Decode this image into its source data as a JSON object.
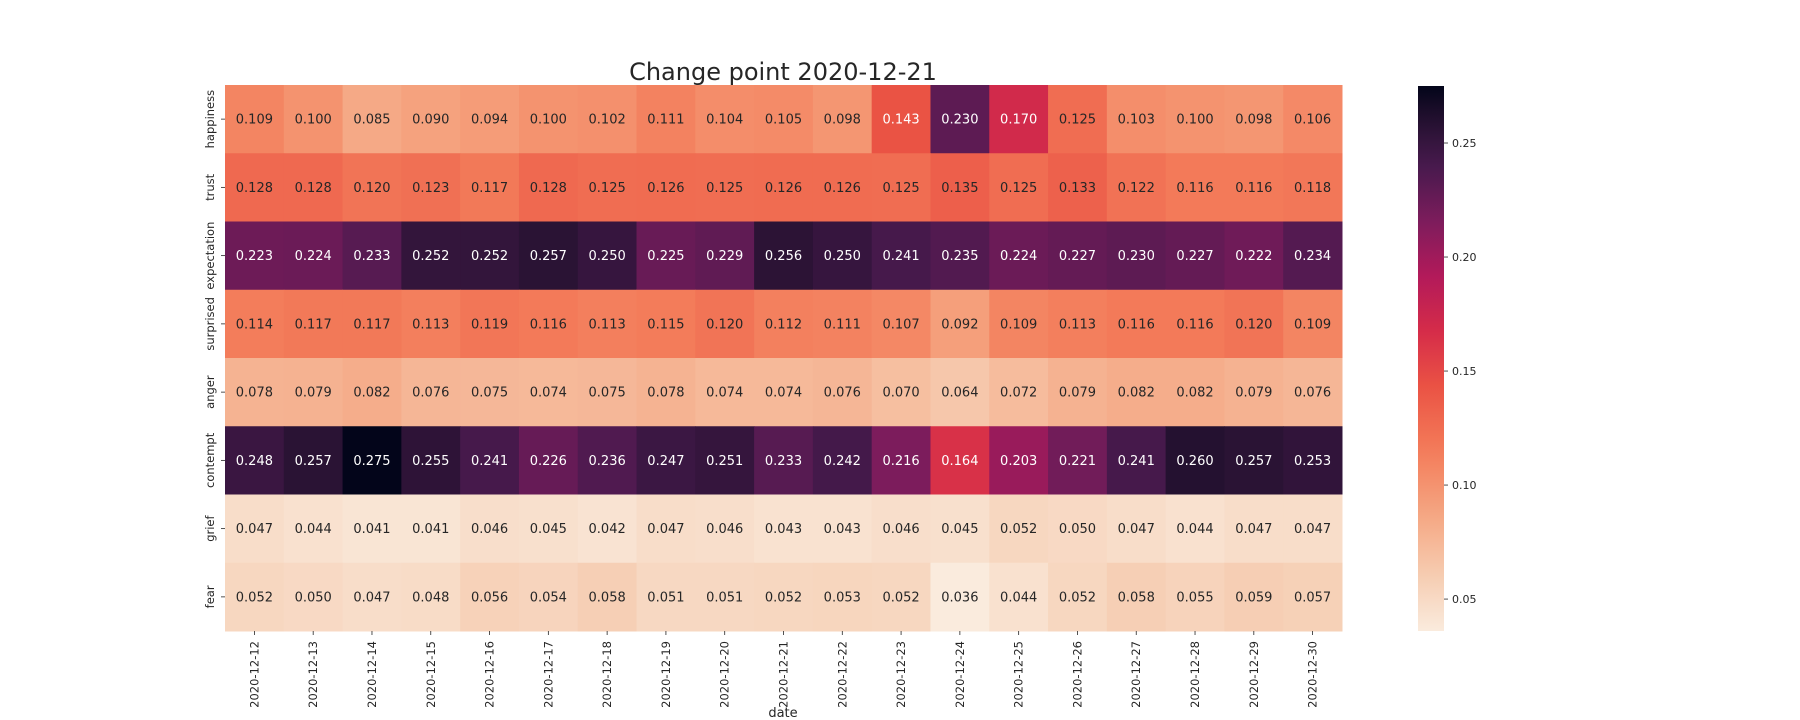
{
  "chart_data": {
    "type": "heatmap",
    "title": "Change point 2020-12-21",
    "xlabel": "date",
    "ylabel": "",
    "x": [
      "2020-12-12",
      "2020-12-13",
      "2020-12-14",
      "2020-12-15",
      "2020-12-16",
      "2020-12-17",
      "2020-12-18",
      "2020-12-19",
      "2020-12-20",
      "2020-12-21",
      "2020-12-22",
      "2020-12-23",
      "2020-12-24",
      "2020-12-25",
      "2020-12-26",
      "2020-12-27",
      "2020-12-28",
      "2020-12-29",
      "2020-12-30"
    ],
    "y": [
      "happiness",
      "trust",
      "expectation",
      "surprised",
      "anger",
      "contempt",
      "grief",
      "fear"
    ],
    "values": [
      [
        0.109,
        0.1,
        0.085,
        0.09,
        0.094,
        0.1,
        0.102,
        0.111,
        0.104,
        0.105,
        0.098,
        0.143,
        0.23,
        0.17,
        0.125,
        0.103,
        0.1,
        0.098,
        0.106
      ],
      [
        0.128,
        0.128,
        0.12,
        0.123,
        0.117,
        0.128,
        0.125,
        0.126,
        0.125,
        0.126,
        0.126,
        0.125,
        0.135,
        0.125,
        0.133,
        0.122,
        0.116,
        0.116,
        0.118
      ],
      [
        0.223,
        0.224,
        0.233,
        0.252,
        0.252,
        0.257,
        0.25,
        0.225,
        0.229,
        0.256,
        0.25,
        0.241,
        0.235,
        0.224,
        0.227,
        0.23,
        0.227,
        0.222,
        0.234
      ],
      [
        0.114,
        0.117,
        0.117,
        0.113,
        0.119,
        0.116,
        0.113,
        0.115,
        0.12,
        0.112,
        0.111,
        0.107,
        0.092,
        0.109,
        0.113,
        0.116,
        0.116,
        0.12,
        0.109
      ],
      [
        0.078,
        0.079,
        0.082,
        0.076,
        0.075,
        0.074,
        0.075,
        0.078,
        0.074,
        0.074,
        0.076,
        0.07,
        0.064,
        0.072,
        0.079,
        0.082,
        0.082,
        0.079,
        0.076
      ],
      [
        0.248,
        0.257,
        0.275,
        0.255,
        0.241,
        0.226,
        0.236,
        0.247,
        0.251,
        0.233,
        0.242,
        0.216,
        0.164,
        0.203,
        0.221,
        0.241,
        0.26,
        0.257,
        0.253
      ],
      [
        0.047,
        0.044,
        0.041,
        0.041,
        0.046,
        0.045,
        0.042,
        0.047,
        0.046,
        0.043,
        0.043,
        0.046,
        0.045,
        0.052,
        0.05,
        0.047,
        0.044,
        0.047,
        0.047
      ],
      [
        0.052,
        0.05,
        0.047,
        0.048,
        0.056,
        0.054,
        0.058,
        0.051,
        0.051,
        0.052,
        0.053,
        0.052,
        0.036,
        0.044,
        0.052,
        0.058,
        0.055,
        0.059,
        0.057
      ]
    ],
    "value_format": "3 decimals",
    "colormap": "rocket_r",
    "color_range": [
      0.036,
      0.275
    ],
    "colorbar_ticks": [
      0.05,
      0.1,
      0.15,
      0.2,
      0.25
    ],
    "colorbar_tick_labels": [
      "0.05",
      "0.10",
      "0.15",
      "0.20",
      "0.25"
    ],
    "colorbar_placement": "right",
    "grid": false
  }
}
